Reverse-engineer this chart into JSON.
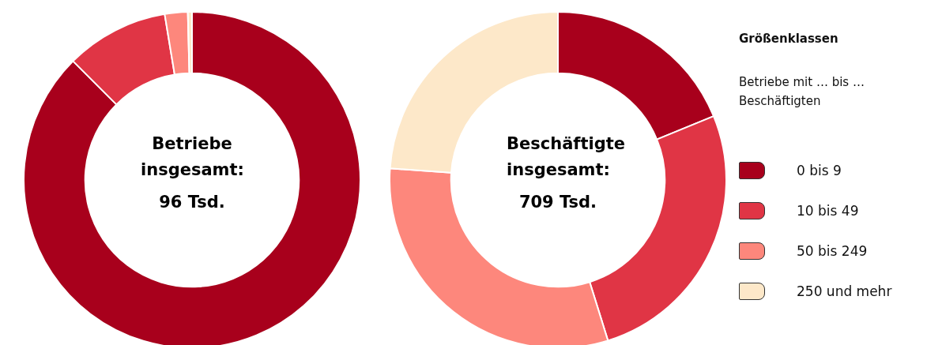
{
  "chart_data": {
    "type": "donut",
    "categories": [
      "0 bis 9",
      "10 bis 49",
      "50 bis 249",
      "250 und mehr"
    ],
    "colors": [
      "#a8001c",
      "#e03545",
      "#fd877c",
      "#fde8c9"
    ],
    "legend": "right",
    "legend_title": "Größenklassen",
    "subtitle": "Betriebe mit … bis … Beschäftigten",
    "series": [
      {
        "name": "Betriebe insgesamt:",
        "values": [
          87.5,
          9.9,
          2.2,
          0.4
        ]
      },
      {
        "name": "Beschäftigte insgesamt:",
        "values": [
          18.8,
          26.4,
          30.9,
          23.9
        ]
      }
    ],
    "annotations": [
      "96 Tsd.",
      "709 Tsd."
    ]
  }
}
